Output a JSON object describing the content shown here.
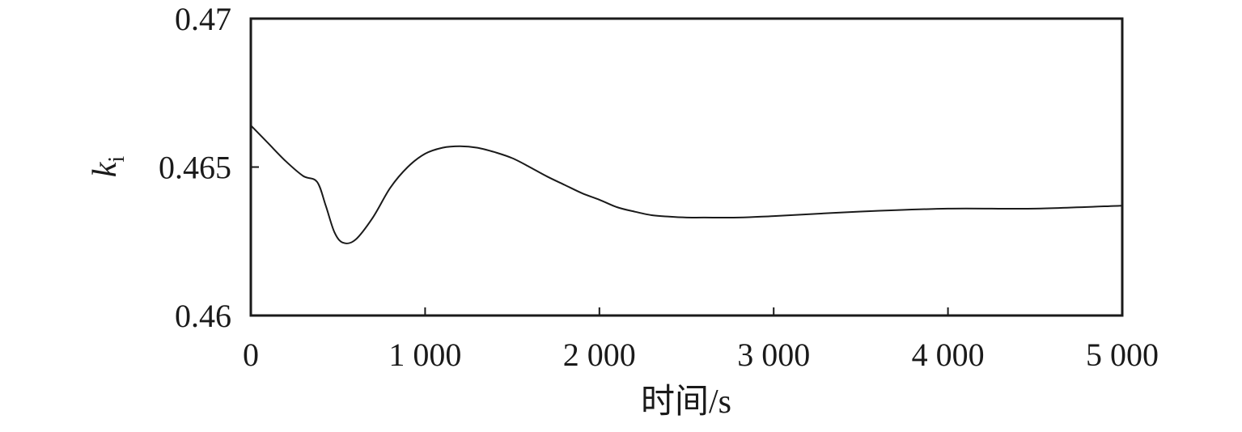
{
  "chart_data": {
    "type": "line",
    "title": "",
    "xlabel": "时间/s",
    "ylabel": "k",
    "ylabel_subscript": "i",
    "xlim": [
      0,
      5000
    ],
    "ylim": [
      0.46,
      0.47
    ],
    "x_ticks": [
      0,
      1000,
      2000,
      3000,
      4000,
      5000
    ],
    "x_tick_labels": [
      "0",
      "1 000",
      "2 000",
      "3 000",
      "4 000",
      "5 000"
    ],
    "y_ticks": [
      0.46,
      0.465,
      0.47
    ],
    "y_tick_labels": [
      "0.46",
      "0.465",
      "0.47"
    ],
    "grid": false,
    "line_color": "#1a1a1a",
    "series": [
      {
        "x": [
          0,
          100,
          200,
          300,
          380,
          430,
          480,
          530,
          600,
          700,
          800,
          900,
          1000,
          1100,
          1200,
          1300,
          1400,
          1500,
          1600,
          1700,
          1800,
          1900,
          2000,
          2100,
          2200,
          2300,
          2400,
          2500,
          2600,
          2800,
          3000,
          3500,
          4000,
          4500,
          5000
        ],
        "y": [
          0.4664,
          0.4658,
          0.4652,
          0.4647,
          0.4645,
          0.4637,
          0.4628,
          0.46245,
          0.46255,
          0.4633,
          0.4643,
          0.465,
          0.46545,
          0.46565,
          0.4657,
          0.46565,
          0.4655,
          0.4653,
          0.465,
          0.46468,
          0.4644,
          0.46412,
          0.4639,
          0.46365,
          0.4635,
          0.46338,
          0.46333,
          0.4633,
          0.4633,
          0.4633,
          0.46335,
          0.4635,
          0.4636,
          0.4636,
          0.4637
        ]
      }
    ]
  }
}
